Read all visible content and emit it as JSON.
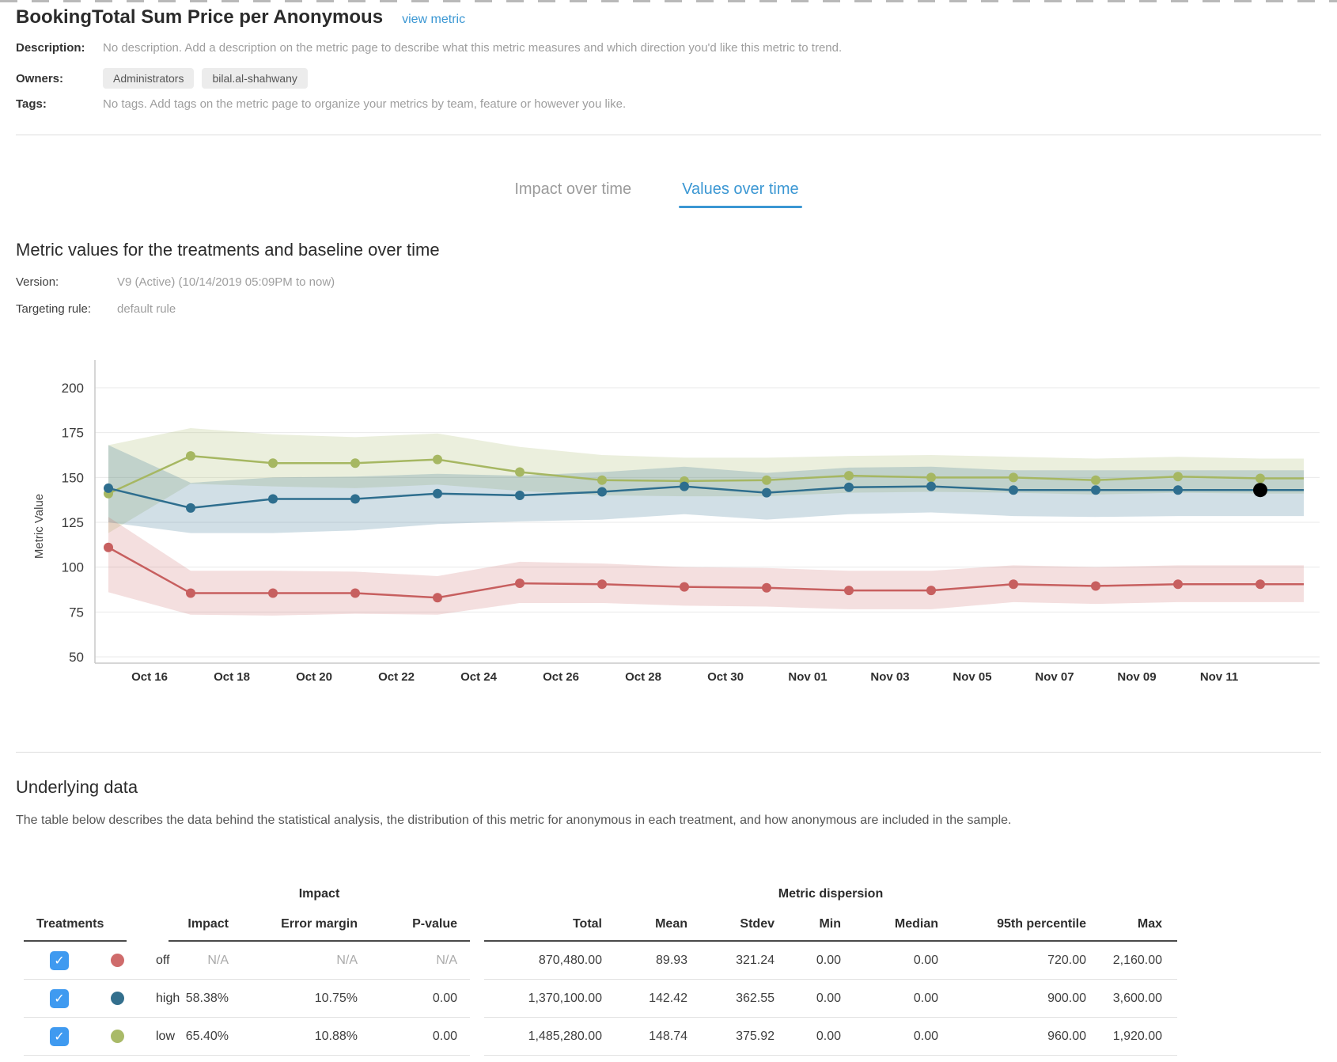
{
  "header": {
    "title": "BookingTotal Sum Price per Anonymous",
    "view_metric_link": "view metric"
  },
  "meta": {
    "description_label": "Description:",
    "description_value": "No description. Add a description on the metric page to describe what this metric measures and which direction you'd like this metric to trend.",
    "owners_label": "Owners:",
    "owners": [
      "Administrators",
      "bilal.al-shahwany"
    ],
    "tags_label": "Tags:",
    "tags_value": "No tags. Add tags on the metric page to organize your metrics by team, feature or however you like."
  },
  "tabs": {
    "items": [
      {
        "label": "Impact over time",
        "active": false
      },
      {
        "label": "Values over time",
        "active": true
      }
    ],
    "active_color": "#3b97d3"
  },
  "section": {
    "heading": "Metric values for the treatments and baseline over time",
    "version_label": "Version:",
    "version_value": "V9 (Active) (10/14/2019 05:09PM to now)",
    "targeting_label": "Targeting rule:",
    "targeting_value": "default rule"
  },
  "chart_data": {
    "type": "line",
    "ylabel": "Metric Value",
    "ylim": [
      50,
      200
    ],
    "yticks": [
      200,
      175,
      150,
      125,
      100,
      75,
      50
    ],
    "grid": true,
    "x_tick_labels": [
      "Oct 16",
      "Oct 18",
      "Oct 20",
      "Oct 22",
      "Oct 24",
      "Oct 26",
      "Oct 28",
      "Oct 30",
      "Nov 01",
      "Nov 03",
      "Nov 05",
      "Nov 07",
      "Nov 09",
      "Nov 11"
    ],
    "series": [
      {
        "name": "low",
        "color": "#a6b762",
        "band_opacity": 0.22,
        "values": [
          141,
          162,
          158,
          158,
          160,
          153,
          148.5,
          148,
          148.5,
          151,
          150,
          150,
          148.5,
          150.5,
          149.5
        ],
        "band_upper": [
          168,
          177.5,
          174,
          172.5,
          174.5,
          167,
          162.5,
          161,
          161,
          162,
          162.5,
          161.5,
          160.5,
          161.5,
          160.5
        ],
        "band_lower": [
          119,
          146.5,
          145,
          144,
          146,
          142.5,
          140,
          139.5,
          139.5,
          141.5,
          142,
          141.5,
          140.5,
          141.5,
          141
        ]
      },
      {
        "name": "high",
        "color": "#2e6e8e",
        "band_opacity": 0.22,
        "values": [
          144,
          133,
          138,
          138,
          141,
          140,
          142,
          145,
          141.5,
          144.5,
          145,
          143,
          143,
          143,
          143
        ],
        "band_upper": [
          168,
          147,
          150,
          150.5,
          152,
          151,
          153,
          156,
          152.5,
          155.5,
          156,
          154,
          154,
          154,
          154
        ],
        "band_lower": [
          125,
          119,
          119,
          120.5,
          124,
          125.5,
          126.5,
          129.5,
          126.5,
          129.5,
          130.5,
          128.5,
          128,
          128.5,
          128.5
        ]
      },
      {
        "name": "off",
        "color": "#c75f5f",
        "band_opacity": 0.2,
        "values": [
          111,
          85.5,
          85.5,
          85.5,
          83,
          91,
          90.5,
          89,
          88.5,
          87,
          87,
          90.5,
          89.5,
          90.5,
          90.5
        ],
        "band_upper": [
          128,
          98,
          98,
          97.5,
          95,
          103,
          102,
          100,
          99.5,
          98,
          98,
          101,
          100,
          101,
          101
        ],
        "band_lower": [
          86,
          73.5,
          73,
          74,
          73.5,
          80,
          80,
          78.5,
          78,
          76.5,
          76.5,
          80.5,
          79.5,
          80.5,
          80.5
        ]
      }
    ],
    "last_point_highlight": {
      "series": "high",
      "color": "#000000"
    }
  },
  "underlying": {
    "heading": "Underlying data",
    "description": "The table below describes the data behind the statistical analysis, the distribution of this metric for anonymous in each treatment, and how anonymous are included in the sample."
  },
  "table": {
    "treatments_header": "Treatments",
    "impact_group_label": "Impact",
    "dispersion_group_label": "Metric dispersion",
    "impact_columns": [
      "Impact",
      "Error margin",
      "P-value"
    ],
    "dispersion_columns": [
      "Total",
      "Mean",
      "Stdev",
      "Min",
      "Median",
      "95th percentile",
      "Max"
    ],
    "checkbox_color": "#3f9af0",
    "check_glyph": "✓",
    "rows": [
      {
        "name": "off",
        "color": "#cf6b6b",
        "checked": true,
        "impact_muted": true,
        "impact": [
          "N/A",
          "N/A",
          "N/A"
        ],
        "dispersion": [
          "870,480.00",
          "89.93",
          "321.24",
          "0.00",
          "0.00",
          "720.00",
          "2,160.00"
        ]
      },
      {
        "name": "high",
        "color": "#336f8d",
        "checked": true,
        "impact_muted": false,
        "impact": [
          "58.38%",
          "10.75%",
          "0.00"
        ],
        "dispersion": [
          "1,370,100.00",
          "142.42",
          "362.55",
          "0.00",
          "0.00",
          "900.00",
          "3,600.00"
        ]
      },
      {
        "name": "low",
        "color": "#a9ba68",
        "checked": true,
        "impact_muted": false,
        "impact": [
          "65.40%",
          "10.88%",
          "0.00"
        ],
        "dispersion": [
          "1,485,280.00",
          "148.74",
          "375.92",
          "0.00",
          "0.00",
          "960.00",
          "1,920.00"
        ]
      }
    ]
  }
}
